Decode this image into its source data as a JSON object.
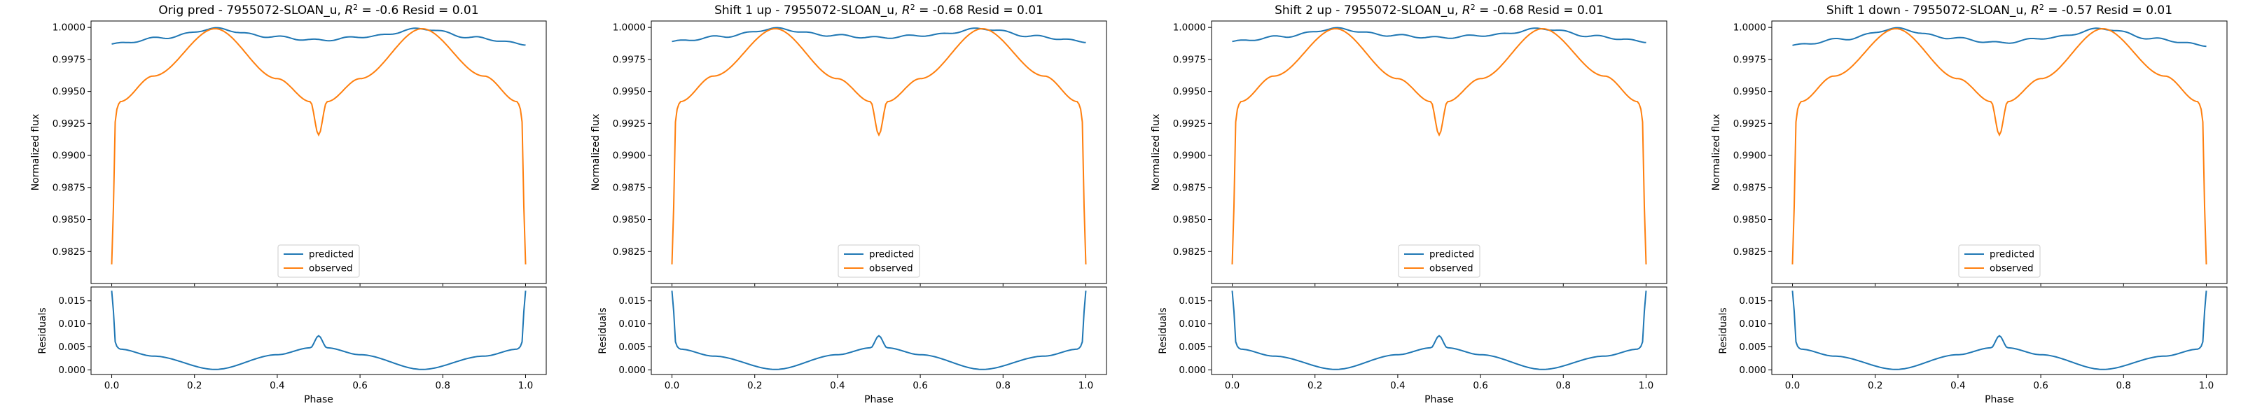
{
  "colors": {
    "predicted": "#1f77b4",
    "observed": "#ff7f0e"
  },
  "chart_data": [
    {
      "type": "line",
      "title_prefix": "Orig pred - 7955072-SLOAN_u, ",
      "title_r2_symbol": "R",
      "title_r2_exp": "2",
      "title_suffix": " = -0.6 Resid = 0.01",
      "xlabel": "Phase",
      "ylabel_main": "Normalized flux",
      "ylabel_resid": "Residuals",
      "xlim": [
        -0.05,
        1.05
      ],
      "ylim_main": [
        0.98,
        1.0005
      ],
      "ylim_resid": [
        -0.001,
        0.018
      ],
      "xticks": [
        "0.0",
        "0.2",
        "0.4",
        "0.6",
        "0.8",
        "1.0"
      ],
      "yticks_main": [
        "0.9825",
        "0.9850",
        "0.9875",
        "0.9900",
        "0.9925",
        "0.9950",
        "0.9975",
        "1.0000"
      ],
      "yticks_resid": [
        "0.000",
        "0.005",
        "0.010",
        "0.015"
      ],
      "legend": [
        "predicted",
        "observed"
      ],
      "legend_position": "lower center",
      "predicted_x": [
        0.0,
        0.125,
        0.25,
        0.375,
        0.5,
        0.625,
        0.75,
        0.875,
        1.0
      ],
      "predicted_y": [
        0.9987,
        0.9992,
        0.9999,
        0.9993,
        0.999,
        0.9993,
        0.9999,
        0.9992,
        0.9987
      ],
      "observed_x": [
        0.0,
        0.01,
        0.02,
        0.1,
        0.25,
        0.4,
        0.48,
        0.5,
        0.52,
        0.6,
        0.75,
        0.9,
        0.98,
        0.99,
        1.0
      ],
      "observed_y": [
        0.9815,
        0.9935,
        0.9942,
        0.9962,
        0.9999,
        0.996,
        0.9942,
        0.9916,
        0.9942,
        0.996,
        0.9999,
        0.9962,
        0.9942,
        0.9935,
        0.9815
      ],
      "resid_x": [
        0.0,
        0.01,
        0.02,
        0.1,
        0.25,
        0.4,
        0.48,
        0.5,
        0.52,
        0.6,
        0.75,
        0.9,
        0.98,
        0.99,
        1.0
      ],
      "resid_y": [
        0.0172,
        0.0052,
        0.0045,
        0.003,
        0.0001,
        0.0033,
        0.0048,
        0.0074,
        0.0048,
        0.0033,
        0.0001,
        0.003,
        0.0045,
        0.0052,
        0.0172
      ]
    },
    {
      "type": "line",
      "title_prefix": "Shift 1 up - 7955072-SLOAN_u, ",
      "title_r2_symbol": "R",
      "title_r2_exp": "2",
      "title_suffix": " = -0.68 Resid = 0.01",
      "xlabel": "Phase",
      "ylabel_main": "Normalized flux",
      "ylabel_resid": "Residuals",
      "xlim": [
        -0.05,
        1.05
      ],
      "ylim_main": [
        0.98,
        1.0005
      ],
      "ylim_resid": [
        -0.001,
        0.018
      ],
      "xticks": [
        "0.0",
        "0.2",
        "0.4",
        "0.6",
        "0.8",
        "1.0"
      ],
      "yticks_main": [
        "0.9825",
        "0.9850",
        "0.9875",
        "0.9900",
        "0.9925",
        "0.9950",
        "0.9975",
        "1.0000"
      ],
      "yticks_resid": [
        "0.000",
        "0.005",
        "0.010",
        "0.015"
      ],
      "legend": [
        "predicted",
        "observed"
      ],
      "legend_position": "lower center",
      "predicted_x": [
        0.0,
        0.125,
        0.25,
        0.375,
        0.5,
        0.625,
        0.75,
        0.875,
        1.0
      ],
      "predicted_y": [
        0.9989,
        0.9993,
        0.9999,
        0.9994,
        0.9992,
        0.9994,
        0.9999,
        0.9993,
        0.9989
      ],
      "observed_x": [
        0.0,
        0.01,
        0.02,
        0.1,
        0.25,
        0.4,
        0.48,
        0.5,
        0.52,
        0.6,
        0.75,
        0.9,
        0.98,
        0.99,
        1.0
      ],
      "observed_y": [
        0.9815,
        0.9935,
        0.9942,
        0.9962,
        0.9999,
        0.996,
        0.9942,
        0.9916,
        0.9942,
        0.996,
        0.9999,
        0.9962,
        0.9942,
        0.9935,
        0.9815
      ],
      "resid_x": [
        0.0,
        0.01,
        0.02,
        0.1,
        0.25,
        0.4,
        0.48,
        0.5,
        0.52,
        0.6,
        0.75,
        0.9,
        0.98,
        0.99,
        1.0
      ],
      "resid_y": [
        0.0172,
        0.0052,
        0.0045,
        0.003,
        0.0001,
        0.0033,
        0.0048,
        0.0074,
        0.0048,
        0.0033,
        0.0001,
        0.003,
        0.0045,
        0.0052,
        0.0172
      ]
    },
    {
      "type": "line",
      "title_prefix": "Shift 2 up - 7955072-SLOAN_u, ",
      "title_r2_symbol": "R",
      "title_r2_exp": "2",
      "title_suffix": " = -0.68 Resid = 0.01",
      "xlabel": "Phase",
      "ylabel_main": "Normalized flux",
      "ylabel_resid": "Residuals",
      "xlim": [
        -0.05,
        1.05
      ],
      "ylim_main": [
        0.98,
        1.0005
      ],
      "ylim_resid": [
        -0.001,
        0.018
      ],
      "xticks": [
        "0.0",
        "0.2",
        "0.4",
        "0.6",
        "0.8",
        "1.0"
      ],
      "yticks_main": [
        "0.9825",
        "0.9850",
        "0.9875",
        "0.9900",
        "0.9925",
        "0.9950",
        "0.9975",
        "1.0000"
      ],
      "yticks_resid": [
        "0.000",
        "0.005",
        "0.010",
        "0.015"
      ],
      "legend": [
        "predicted",
        "observed"
      ],
      "legend_position": "lower center",
      "predicted_x": [
        0.0,
        0.125,
        0.25,
        0.375,
        0.5,
        0.625,
        0.75,
        0.875,
        1.0
      ],
      "predicted_y": [
        0.9989,
        0.9993,
        0.9999,
        0.9994,
        0.9992,
        0.9994,
        0.9999,
        0.9993,
        0.9989
      ],
      "observed_x": [
        0.0,
        0.01,
        0.02,
        0.1,
        0.25,
        0.4,
        0.48,
        0.5,
        0.52,
        0.6,
        0.75,
        0.9,
        0.98,
        0.99,
        1.0
      ],
      "observed_y": [
        0.9815,
        0.9935,
        0.9942,
        0.9962,
        0.9999,
        0.996,
        0.9942,
        0.9916,
        0.9942,
        0.996,
        0.9999,
        0.9962,
        0.9942,
        0.9935,
        0.9815
      ],
      "resid_x": [
        0.0,
        0.01,
        0.02,
        0.1,
        0.25,
        0.4,
        0.48,
        0.5,
        0.52,
        0.6,
        0.75,
        0.9,
        0.98,
        0.99,
        1.0
      ],
      "resid_y": [
        0.0172,
        0.0052,
        0.0045,
        0.003,
        0.0001,
        0.0033,
        0.0048,
        0.0074,
        0.0048,
        0.0033,
        0.0001,
        0.003,
        0.0045,
        0.0052,
        0.0172
      ]
    },
    {
      "type": "line",
      "title_prefix": "Shift 1 down - 7955072-SLOAN_u, ",
      "title_r2_symbol": "R",
      "title_r2_exp": "2",
      "title_suffix": " = -0.57 Resid = 0.01",
      "xlabel": "Phase",
      "ylabel_main": "Normalized flux",
      "ylabel_resid": "Residuals",
      "xlim": [
        -0.05,
        1.05
      ],
      "ylim_main": [
        0.98,
        1.0005
      ],
      "ylim_resid": [
        -0.001,
        0.018
      ],
      "xticks": [
        "0.0",
        "0.2",
        "0.4",
        "0.6",
        "0.8",
        "1.0"
      ],
      "yticks_main": [
        "0.9825",
        "0.9850",
        "0.9875",
        "0.9900",
        "0.9925",
        "0.9950",
        "0.9975",
        "1.0000"
      ],
      "yticks_resid": [
        "0.000",
        "0.005",
        "0.010",
        "0.015"
      ],
      "legend": [
        "predicted",
        "observed"
      ],
      "legend_position": "lower center",
      "predicted_x": [
        0.0,
        0.125,
        0.25,
        0.375,
        0.5,
        0.625,
        0.75,
        0.875,
        1.0
      ],
      "predicted_y": [
        0.9986,
        0.9991,
        0.9999,
        0.9992,
        0.9988,
        0.9992,
        0.9999,
        0.9991,
        0.9986
      ],
      "observed_x": [
        0.0,
        0.01,
        0.02,
        0.1,
        0.25,
        0.4,
        0.48,
        0.5,
        0.52,
        0.6,
        0.75,
        0.9,
        0.98,
        0.99,
        1.0
      ],
      "observed_y": [
        0.9815,
        0.9935,
        0.9942,
        0.9962,
        0.9999,
        0.996,
        0.9942,
        0.9916,
        0.9942,
        0.996,
        0.9999,
        0.9962,
        0.9942,
        0.9935,
        0.9815
      ],
      "resid_x": [
        0.0,
        0.01,
        0.02,
        0.1,
        0.25,
        0.4,
        0.48,
        0.5,
        0.52,
        0.6,
        0.75,
        0.9,
        0.98,
        0.99,
        1.0
      ],
      "resid_y": [
        0.0172,
        0.0052,
        0.0045,
        0.003,
        0.0001,
        0.0033,
        0.0048,
        0.0074,
        0.0048,
        0.0033,
        0.0001,
        0.003,
        0.0045,
        0.0052,
        0.0172
      ]
    }
  ]
}
